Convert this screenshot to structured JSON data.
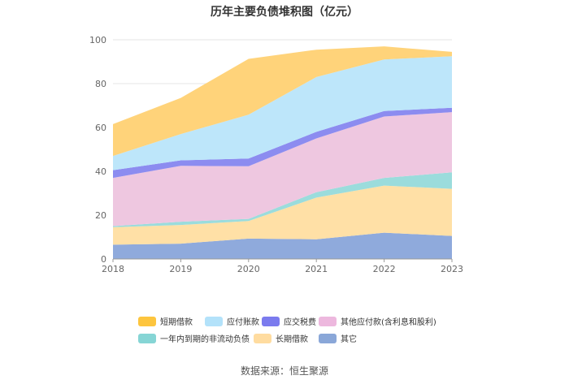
{
  "chart_data": {
    "type": "area",
    "stacked": true,
    "title": "历年主要负债堆积图（亿元）",
    "categories": [
      "2018",
      "2019",
      "2020",
      "2021",
      "2022",
      "2023"
    ],
    "ylim": [
      0,
      100
    ],
    "yticks": [
      "0",
      "20",
      "40",
      "60",
      "80",
      "100"
    ],
    "grid": true,
    "legend_position": "bottom",
    "series": [
      {
        "name": "其它",
        "color": "#8FAADC",
        "values": [
          6.5,
          7.0,
          9.3,
          9.0,
          12.0,
          10.5
        ]
      },
      {
        "name": "长期借款",
        "color": "#FFE0A6",
        "values": [
          8.0,
          8.5,
          8.0,
          19.0,
          21.5,
          21.5
        ]
      },
      {
        "name": "一年内到期的非流动负债",
        "color": "#9BDCDC",
        "values": [
          0.5,
          1.5,
          1.0,
          2.5,
          3.5,
          7.5
        ]
      },
      {
        "name": "其他应付款(含利息和股利)",
        "color": "#EEC7E0",
        "values": [
          22.0,
          25.5,
          24.0,
          24.5,
          28.0,
          27.5
        ]
      },
      {
        "name": "应交税费",
        "color": "#8C8CF0",
        "values": [
          3.5,
          2.5,
          3.5,
          3.0,
          2.5,
          2.0
        ]
      },
      {
        "name": "应付账款",
        "color": "#BDE6FA",
        "values": [
          6.5,
          12.0,
          20.0,
          25.0,
          23.5,
          23.5
        ]
      },
      {
        "name": "短期借款",
        "color": "#FFD37A",
        "values": [
          14.5,
          16.5,
          25.5,
          12.5,
          6.0,
          2.0
        ]
      }
    ]
  },
  "legend": [
    {
      "label": "短期借款",
      "color": "#FDC53E"
    },
    {
      "label": "应付账款",
      "color": "#B3E2FA"
    },
    {
      "label": "应交税费",
      "color": "#7B7BEE"
    },
    {
      "label": "其他应付款(含利息和股利)",
      "color": "#EDB8DE"
    },
    {
      "label": "一年内到期的非流动负债",
      "color": "#86D5D5"
    },
    {
      "label": "长期借款",
      "color": "#FFDCA0"
    },
    {
      "label": "其它",
      "color": "#8AA7D8"
    }
  ],
  "source": "数据来源：恒生聚源"
}
